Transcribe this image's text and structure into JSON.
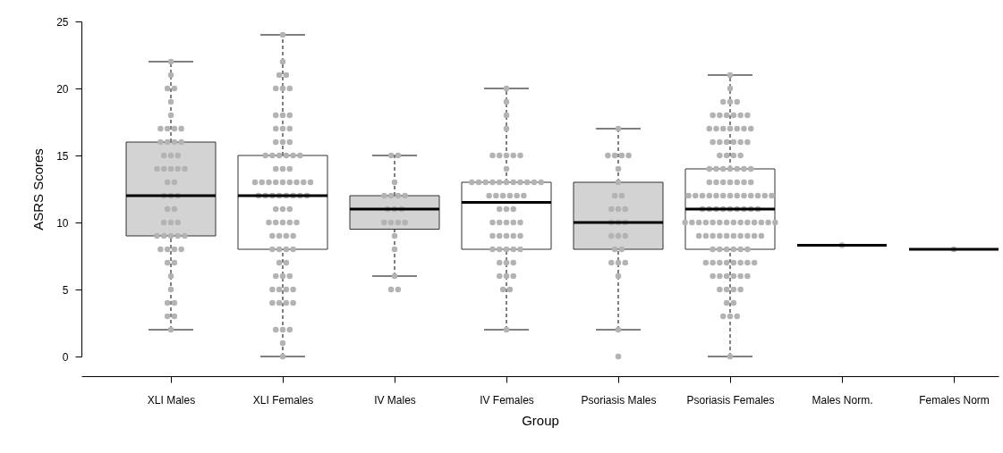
{
  "chart_data": {
    "type": "box",
    "xlabel": "Group",
    "ylabel": "ASRS Scores",
    "categories": [
      "XLI Males",
      "XLI Females",
      "IV Males",
      "IV Females",
      "Psoriasis Males",
      "Psoriasis Females",
      "Males Norm.",
      "Females Norm"
    ],
    "ylim": [
      0,
      25
    ],
    "yticks": [
      0,
      5,
      10,
      15,
      20,
      25
    ],
    "colors": [
      "#d3d3d3",
      "#ffffff",
      "#d3d3d3",
      "#ffffff",
      "#d3d3d3",
      "#ffffff",
      "#000000",
      "#000000"
    ],
    "boxes": [
      {
        "low": 2,
        "q1": 9,
        "median": 12,
        "q3": 16,
        "high": 22
      },
      {
        "low": 0,
        "q1": 8,
        "median": 12,
        "q3": 15,
        "high": 24
      },
      {
        "low": 6,
        "q1": 9.5,
        "median": 11,
        "q3": 12,
        "high": 15
      },
      {
        "low": 2,
        "q1": 8,
        "median": 11.5,
        "q3": 13,
        "high": 20
      },
      {
        "low": 2,
        "q1": 8,
        "median": 10,
        "q3": 13,
        "high": 17
      },
      {
        "low": 0,
        "q1": 8,
        "median": 11,
        "q3": 14,
        "high": 21
      },
      {
        "low": 8.3,
        "q1": 8.3,
        "median": 8.3,
        "q3": 8.3,
        "high": 8.3
      },
      {
        "low": 8,
        "q1": 8,
        "median": 8,
        "q3": 8,
        "high": 8
      }
    ],
    "series": [
      {
        "type": "scatter",
        "color": "#b3b3b3",
        "x": [
          "XLI Males",
          "XLI Males",
          "XLI Males",
          "XLI Males",
          "XLI Males",
          "XLI Males",
          "XLI Males",
          "XLI Males",
          "XLI Males",
          "XLI Males",
          "XLI Males",
          "XLI Males",
          "XLI Males",
          "XLI Males",
          "XLI Males",
          "XLI Males",
          "XLI Males",
          "XLI Males",
          "XLI Males",
          "XLI Males",
          "XLI Males",
          "XLI Males",
          "XLI Males",
          "XLI Males",
          "XLI Males",
          "XLI Males",
          "XLI Males",
          "XLI Males",
          "XLI Males",
          "XLI Males",
          "XLI Males",
          "XLI Males",
          "XLI Males",
          "XLI Males",
          "XLI Males",
          "XLI Males",
          "XLI Males",
          "XLI Males",
          "XLI Males",
          "XLI Males",
          "XLI Males",
          "XLI Males",
          "XLI Males",
          "XLI Males",
          "XLI Males",
          "XLI Males",
          "XLI Males",
          "XLI Males",
          "XLI Males",
          "XLI Males",
          "XLI Females",
          "XLI Females",
          "XLI Females",
          "XLI Females",
          "XLI Females",
          "XLI Females",
          "XLI Females",
          "XLI Females",
          "XLI Females",
          "XLI Females",
          "XLI Females",
          "XLI Females",
          "XLI Females",
          "XLI Females",
          "XLI Females",
          "XLI Females",
          "XLI Females",
          "XLI Females",
          "XLI Females",
          "XLI Females",
          "XLI Females",
          "XLI Females",
          "XLI Females",
          "XLI Females",
          "XLI Females",
          "XLI Females",
          "XLI Females",
          "XLI Females",
          "XLI Females",
          "XLI Females",
          "XLI Females",
          "XLI Females",
          "XLI Females",
          "XLI Females",
          "XLI Females",
          "XLI Females",
          "XLI Females",
          "XLI Females",
          "XLI Females",
          "XLI Females",
          "XLI Females",
          "XLI Females",
          "XLI Females",
          "XLI Females",
          "XLI Females",
          "XLI Females",
          "XLI Females",
          "XLI Females",
          "XLI Females",
          "XLI Females",
          "XLI Females",
          "XLI Females",
          "XLI Females",
          "XLI Females",
          "XLI Females",
          "XLI Females",
          "XLI Females",
          "XLI Females",
          "XLI Females",
          "XLI Females",
          "XLI Females",
          "XLI Females",
          "XLI Females",
          "XLI Females",
          "XLI Females",
          "XLI Females",
          "XLI Females",
          "XLI Females",
          "XLI Females",
          "XLI Females",
          "XLI Females",
          "XLI Females",
          "XLI Females",
          "XLI Females",
          "XLI Females",
          "XLI Females",
          "IV Males",
          "IV Males",
          "IV Males",
          "IV Males",
          "IV Males",
          "IV Males",
          "IV Males",
          "IV Males",
          "IV Males",
          "IV Males",
          "IV Males",
          "IV Males",
          "IV Males",
          "IV Males",
          "IV Males",
          "IV Males",
          "IV Males",
          "IV Males",
          "IV Males",
          "IV Females",
          "IV Females",
          "IV Females",
          "IV Females",
          "IV Females",
          "IV Females",
          "IV Females",
          "IV Females",
          "IV Females",
          "IV Females",
          "IV Females",
          "IV Females",
          "IV Females",
          "IV Females",
          "IV Females",
          "IV Females",
          "IV Females",
          "IV Females",
          "IV Females",
          "IV Females",
          "IV Females",
          "IV Females",
          "IV Females",
          "IV Females",
          "IV Females",
          "IV Females",
          "IV Females",
          "IV Females",
          "IV Females",
          "IV Females",
          "IV Females",
          "IV Females",
          "IV Females",
          "IV Females",
          "IV Females",
          "IV Females",
          "IV Females",
          "IV Females",
          "IV Females",
          "IV Females",
          "IV Females",
          "IV Females",
          "IV Females",
          "IV Females",
          "IV Females",
          "IV Females",
          "IV Females",
          "IV Females",
          "IV Females",
          "IV Females",
          "IV Females",
          "IV Females",
          "IV Females",
          "IV Females",
          "Psoriasis Males",
          "Psoriasis Males",
          "Psoriasis Males",
          "Psoriasis Males",
          "Psoriasis Males",
          "Psoriasis Males",
          "Psoriasis Males",
          "Psoriasis Males",
          "Psoriasis Males",
          "Psoriasis Males",
          "Psoriasis Males",
          "Psoriasis Males",
          "Psoriasis Males",
          "Psoriasis Males",
          "Psoriasis Males",
          "Psoriasis Males",
          "Psoriasis Males",
          "Psoriasis Males",
          "Psoriasis Males",
          "Psoriasis Males",
          "Psoriasis Males",
          "Psoriasis Males",
          "Psoriasis Males",
          "Psoriasis Males",
          "Psoriasis Males",
          "Psoriasis Males",
          "Psoriasis Females",
          "Psoriasis Females",
          "Psoriasis Females",
          "Psoriasis Females",
          "Psoriasis Females",
          "Psoriasis Females",
          "Psoriasis Females",
          "Psoriasis Females",
          "Psoriasis Females",
          "Psoriasis Females",
          "Psoriasis Females",
          "Psoriasis Females",
          "Psoriasis Females",
          "Psoriasis Females",
          "Psoriasis Females",
          "Psoriasis Females",
          "Psoriasis Females",
          "Psoriasis Females",
          "Psoriasis Females",
          "Psoriasis Females",
          "Psoriasis Females",
          "Psoriasis Females",
          "Psoriasis Females",
          "Psoriasis Females",
          "Psoriasis Females",
          "Psoriasis Females",
          "Psoriasis Females",
          "Psoriasis Females",
          "Psoriasis Females",
          "Psoriasis Females",
          "Psoriasis Females",
          "Psoriasis Females",
          "Psoriasis Females",
          "Psoriasis Females",
          "Psoriasis Females",
          "Psoriasis Females",
          "Psoriasis Females",
          "Psoriasis Females",
          "Psoriasis Females",
          "Psoriasis Females",
          "Psoriasis Females",
          "Psoriasis Females",
          "Psoriasis Females",
          "Psoriasis Females",
          "Psoriasis Females",
          "Psoriasis Females",
          "Psoriasis Females",
          "Psoriasis Females",
          "Psoriasis Females",
          "Psoriasis Females",
          "Psoriasis Females",
          "Psoriasis Females",
          "Psoriasis Females",
          "Psoriasis Females",
          "Psoriasis Females",
          "Psoriasis Females",
          "Psoriasis Females",
          "Psoriasis Females",
          "Psoriasis Females",
          "Psoriasis Females",
          "Psoriasis Females",
          "Psoriasis Females",
          "Psoriasis Females",
          "Psoriasis Females",
          "Psoriasis Females",
          "Psoriasis Females",
          "Psoriasis Females",
          "Psoriasis Females",
          "Psoriasis Females",
          "Psoriasis Females",
          "Psoriasis Females",
          "Psoriasis Females",
          "Psoriasis Females",
          "Psoriasis Females",
          "Psoriasis Females",
          "Psoriasis Females",
          "Psoriasis Females",
          "Psoriasis Females",
          "Psoriasis Females",
          "Psoriasis Females",
          "Psoriasis Females",
          "Psoriasis Females",
          "Psoriasis Females",
          "Psoriasis Females",
          "Psoriasis Females",
          "Psoriasis Females",
          "Psoriasis Females",
          "Psoriasis Females",
          "Psoriasis Females",
          "Psoriasis Females",
          "Psoriasis Females",
          "Psoriasis Females",
          "Psoriasis Females",
          "Psoriasis Females",
          "Psoriasis Females",
          "Psoriasis Females",
          "Psoriasis Females",
          "Psoriasis Females",
          "Psoriasis Females",
          "Psoriasis Females",
          "Psoriasis Females",
          "Psoriasis Females",
          "Psoriasis Females",
          "Psoriasis Females",
          "Psoriasis Females",
          "Psoriasis Females",
          "Psoriasis Females",
          "Psoriasis Females",
          "Psoriasis Females",
          "Psoriasis Females",
          "Psoriasis Females",
          "Psoriasis Females",
          "Psoriasis Females",
          "Psoriasis Females",
          "Psoriasis Females",
          "Psoriasis Females",
          "Psoriasis Females",
          "Psoriasis Females",
          "Males Norm.",
          "Females Norm"
        ],
        "values": [
          22,
          21,
          20,
          20,
          19,
          18,
          17,
          17,
          17,
          17,
          16,
          16,
          16,
          16,
          15,
          15,
          15,
          14,
          14,
          14,
          14,
          14,
          13,
          13,
          12,
          12,
          12,
          11,
          11,
          10,
          10,
          10,
          9,
          9,
          9,
          9,
          9,
          8,
          8,
          8,
          8,
          7,
          7,
          6,
          5,
          4,
          4,
          3,
          3,
          2,
          24,
          22,
          21,
          21,
          20,
          20,
          20,
          18,
          18,
          18,
          17,
          17,
          17,
          16,
          16,
          16,
          15,
          15,
          15,
          15,
          15,
          15,
          14,
          14,
          14,
          13,
          13,
          13,
          13,
          13,
          13,
          13,
          13,
          13,
          12,
          12,
          12,
          12,
          12,
          12,
          12,
          12,
          11,
          11,
          11,
          10,
          10,
          10,
          10,
          10,
          9,
          9,
          9,
          9,
          8,
          8,
          8,
          8,
          7,
          7,
          6,
          6,
          6,
          5,
          5,
          5,
          5,
          4,
          4,
          4,
          4,
          2,
          2,
          2,
          1,
          0,
          15,
          15,
          13,
          12,
          12,
          12,
          12,
          11,
          11,
          11,
          10,
          10,
          10,
          10,
          9,
          8,
          6,
          5,
          5,
          20,
          19,
          18,
          17,
          15,
          15,
          15,
          15,
          15,
          14,
          13,
          13,
          13,
          13,
          13,
          13,
          13,
          13,
          13,
          13,
          13,
          12,
          12,
          12,
          12,
          12,
          12,
          11,
          11,
          11,
          10,
          10,
          10,
          10,
          10,
          9,
          9,
          9,
          9,
          9,
          8,
          8,
          8,
          8,
          8,
          7,
          7,
          7,
          6,
          6,
          6,
          5,
          5,
          2,
          17,
          15,
          15,
          15,
          15,
          14,
          13,
          12,
          12,
          11,
          11,
          11,
          10,
          10,
          10,
          9,
          9,
          9,
          8,
          8,
          7,
          7,
          7,
          6,
          2,
          0,
          21,
          20,
          19,
          19,
          19,
          18,
          18,
          18,
          18,
          18,
          18,
          17,
          17,
          17,
          17,
          17,
          17,
          17,
          16,
          16,
          16,
          16,
          16,
          16,
          15,
          15,
          15,
          15,
          14,
          14,
          14,
          14,
          14,
          14,
          14,
          13,
          13,
          13,
          13,
          13,
          13,
          13,
          12,
          12,
          12,
          12,
          12,
          12,
          12,
          12,
          12,
          12,
          12,
          12,
          12,
          11,
          11,
          11,
          11,
          11,
          11,
          11,
          11,
          11,
          10,
          10,
          10,
          10,
          10,
          10,
          10,
          10,
          10,
          10,
          10,
          10,
          10,
          10,
          9,
          9,
          9,
          9,
          9,
          9,
          9,
          9,
          9,
          9,
          8,
          8,
          8,
          8,
          8,
          8,
          7,
          7,
          7,
          7,
          7,
          7,
          7,
          7,
          6,
          6,
          6,
          6,
          6,
          6,
          5,
          5,
          5,
          5,
          4,
          4,
          3,
          3,
          3,
          0,
          8.3,
          8
        ]
      }
    ]
  }
}
